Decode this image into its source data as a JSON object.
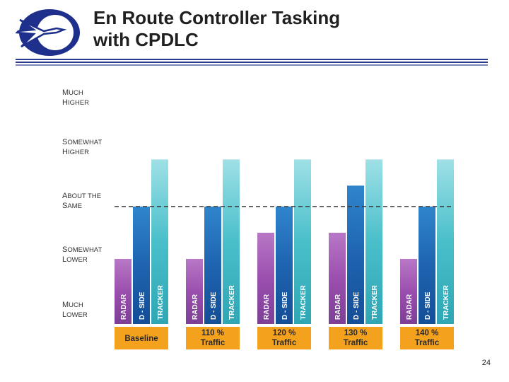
{
  "slide": {
    "title_line1": "En Route Controller Tasking",
    "title_line2": "with CPDLC",
    "slide_number": "24"
  },
  "colors": {
    "logo_navy": "#1f2f8c",
    "rule_navy": "#2a3a8f",
    "radar_purple": "#9b4fae",
    "dside_blue": "#1f64b0",
    "tracker_teal": "#49bfca",
    "category_bar": "#f4a11e"
  },
  "chart_data": {
    "type": "bar",
    "ylabels": [
      [
        "MUCH",
        "HIGHER"
      ],
      [
        "SOMEWHAT",
        "HIGHER"
      ],
      [
        "ABOUT THE",
        "SAME"
      ],
      [
        "SOMEWHAT",
        "LOWER"
      ],
      [
        "MUCH",
        "LOWER"
      ]
    ],
    "ylim": [
      1,
      5
    ],
    "reference_line": 3,
    "categories": [
      [
        "Baseline"
      ],
      [
        "110 %",
        "Traffic"
      ],
      [
        "120 %",
        "Traffic"
      ],
      [
        "130 %",
        "Traffic"
      ],
      [
        "140 %",
        "Traffic"
      ]
    ],
    "series": [
      {
        "name": "RADAR",
        "values": [
          2,
          2,
          2.5,
          2.5,
          2
        ]
      },
      {
        "name": "D - SIDE",
        "values": [
          3,
          3,
          3,
          3.4,
          3
        ]
      },
      {
        "name": "TRACKER",
        "values": [
          3.9,
          3.9,
          3.9,
          3.9,
          3.9
        ]
      }
    ]
  }
}
